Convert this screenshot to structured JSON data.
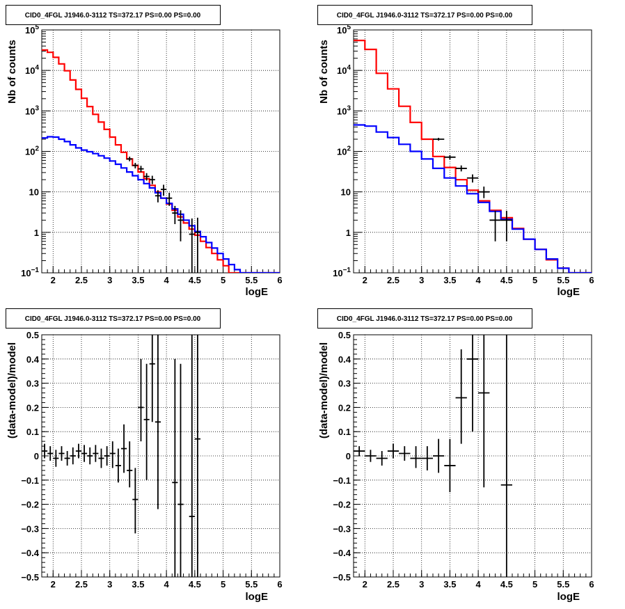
{
  "colors": {
    "total_model": "#ff0000",
    "background_model": "#0000ff",
    "data": "#000000"
  },
  "chart_data": [
    {
      "type": "line",
      "title": "CID0_4FGL J1946.0-3112 TS=372.17 PS=0.00 PS=0.00",
      "xlabel": "logE",
      "ylabel": "Nb of counts",
      "xlim": [
        1.8,
        6.0
      ],
      "ylim": [
        0.1,
        100000
      ],
      "yscale": "log",
      "grid": true,
      "x_ticks": [
        "2",
        "2.5",
        "3",
        "3.5",
        "4",
        "4.5",
        "5",
        "5.5",
        "6"
      ],
      "y_ticks": [
        {
          "base": "10",
          "exp": "−1"
        },
        {
          "base": "1",
          "exp": ""
        },
        {
          "base": "10",
          "exp": ""
        },
        {
          "base": "10",
          "exp": "2"
        },
        {
          "base": "10",
          "exp": "3"
        },
        {
          "base": "10",
          "exp": "4"
        },
        {
          "base": "10",
          "exp": "5"
        }
      ],
      "bin_edges": [
        1.8,
        1.9,
        2.0,
        2.1,
        2.2,
        2.3,
        2.4,
        2.5,
        2.6,
        2.7,
        2.8,
        2.9,
        3.0,
        3.1,
        3.2,
        3.3,
        3.4,
        3.5,
        3.6,
        3.7,
        3.8,
        3.9,
        4.0,
        4.1,
        4.2,
        4.3,
        4.4,
        4.5,
        4.6,
        4.7,
        4.8,
        4.9,
        5.0,
        5.1,
        5.2,
        5.3,
        5.4,
        5.5,
        5.6,
        5.7,
        5.8,
        5.9,
        6.0
      ],
      "series": [
        {
          "role": "total",
          "values": [
            32000,
            28000,
            21000,
            14500,
            9800,
            5800,
            3400,
            2050,
            1280,
            820,
            530,
            350,
            225,
            145,
            95,
            65,
            45,
            31,
            21,
            14.5,
            10,
            7,
            5,
            3.5,
            2.4,
            1.7,
            1.2,
            0.85,
            0.6,
            0.42,
            0.3,
            0.21,
            0.15,
            0.1,
            0.1,
            0.1,
            0.1,
            0.1,
            0.1,
            0.1,
            0.1,
            0.1
          ]
        },
        {
          "role": "background",
          "values": [
            215,
            230,
            225,
            200,
            175,
            145,
            122,
            108,
            98,
            88,
            78,
            68,
            58,
            48,
            39,
            31,
            25,
            20,
            16,
            12.5,
            9.5,
            7,
            5.2,
            3.8,
            2.8,
            2.0,
            1.45,
            1.05,
            0.78,
            0.56,
            0.41,
            0.3,
            0.22,
            0.16,
            0.12,
            0.1,
            0.1,
            0.1,
            0.1,
            0.1,
            0.1,
            0.1
          ]
        }
      ],
      "points": [
        {
          "x": 3.35,
          "y": 65,
          "xerr": 0.05,
          "ylo": 57,
          "yhi": 74
        },
        {
          "x": 3.45,
          "y": 45,
          "xerr": 0.05,
          "ylo": 38,
          "yhi": 52
        },
        {
          "x": 3.55,
          "y": 37,
          "xerr": 0.05,
          "ylo": 31,
          "yhi": 44
        },
        {
          "x": 3.65,
          "y": 24,
          "xerr": 0.05,
          "ylo": 19,
          "yhi": 29
        },
        {
          "x": 3.75,
          "y": 20,
          "xerr": 0.05,
          "ylo": 15.5,
          "yhi": 25
        },
        {
          "x": 3.85,
          "y": 8,
          "xerr": 0.05,
          "ylo": 5.5,
          "yhi": 11
        },
        {
          "x": 3.95,
          "y": 11.5,
          "xerr": 0.05,
          "ylo": 8,
          "yhi": 15
        },
        {
          "x": 4.05,
          "y": 7,
          "xerr": 0.05,
          "ylo": 4.5,
          "yhi": 9.5
        },
        {
          "x": 4.15,
          "y": 3,
          "xerr": 0.05,
          "ylo": 1.6,
          "yhi": 4.5
        },
        {
          "x": 4.25,
          "y": 2,
          "xerr": 0.05,
          "ylo": 0.6,
          "yhi": 3.5
        },
        {
          "x": 4.45,
          "y": 0.9,
          "xerr": 0.05,
          "ylo": 0.1,
          "yhi": 2.2
        },
        {
          "x": 4.55,
          "y": 1,
          "xerr": 0.05,
          "ylo": 0.1,
          "yhi": 2.3
        }
      ]
    },
    {
      "type": "line",
      "title": "CID0_4FGL J1946.0-3112 TS=372.17 PS=0.00 PS=0.00",
      "xlabel": "logE",
      "ylabel": "Nb of counts",
      "xlim": [
        1.8,
        6.0
      ],
      "ylim": [
        0.1,
        100000
      ],
      "yscale": "log",
      "grid": true,
      "x_ticks": [
        "2",
        "2.5",
        "3",
        "3.5",
        "4",
        "4.5",
        "5",
        "5.5",
        "6"
      ],
      "y_ticks": [
        {
          "base": "10",
          "exp": "−1"
        },
        {
          "base": "1",
          "exp": ""
        },
        {
          "base": "10",
          "exp": ""
        },
        {
          "base": "10",
          "exp": "2"
        },
        {
          "base": "10",
          "exp": "3"
        },
        {
          "base": "10",
          "exp": "4"
        },
        {
          "base": "10",
          "exp": "5"
        }
      ],
      "bin_edges": [
        1.8,
        2.0,
        2.2,
        2.4,
        2.6,
        2.8,
        3.0,
        3.2,
        3.4,
        3.6,
        3.8,
        4.0,
        4.2,
        4.4,
        4.6,
        4.8,
        5.0,
        5.2,
        5.4,
        5.6,
        5.8,
        6.0
      ],
      "series": [
        {
          "role": "total",
          "values": [
            55000,
            33000,
            8500,
            3500,
            1300,
            520,
            200,
            75,
            40,
            20,
            11,
            6,
            3.5,
            2.3,
            1.25,
            0.68,
            0.38,
            0.21,
            0.13,
            0.1,
            0.1
          ]
        },
        {
          "role": "background",
          "values": [
            450,
            420,
            300,
            220,
            150,
            100,
            65,
            38,
            22,
            14,
            9,
            5.5,
            3.3,
            2.1,
            1.2,
            0.68,
            0.38,
            0.22,
            0.13,
            0.1,
            0.1
          ]
        }
      ],
      "points": [
        {
          "x": 3.3,
          "y": 200,
          "xerr": 0.1,
          "ylo": 185,
          "yhi": 216
        },
        {
          "x": 3.5,
          "y": 72,
          "xerr": 0.1,
          "ylo": 63,
          "yhi": 81
        },
        {
          "x": 3.7,
          "y": 38,
          "xerr": 0.1,
          "ylo": 32,
          "yhi": 45
        },
        {
          "x": 3.9,
          "y": 22,
          "xerr": 0.1,
          "ylo": 17,
          "yhi": 27
        },
        {
          "x": 4.1,
          "y": 10,
          "xerr": 0.1,
          "ylo": 7,
          "yhi": 13.5
        },
        {
          "x": 4.3,
          "y": 2,
          "xerr": 0.1,
          "ylo": 0.6,
          "yhi": 3.4
        },
        {
          "x": 4.5,
          "y": 2,
          "xerr": 0.1,
          "ylo": 0.6,
          "yhi": 3.4
        }
      ]
    },
    {
      "type": "scatter",
      "title": "CID0_4FGL J1946.0-3112 TS=372.17 PS=0.00 PS=0.00",
      "xlabel": "logE",
      "ylabel": "(data-model)/model",
      "xlim": [
        1.8,
        6.0
      ],
      "ylim": [
        -0.5,
        0.5
      ],
      "grid": true,
      "x_ticks": [
        "2",
        "2.5",
        "3",
        "3.5",
        "4",
        "4.5",
        "5",
        "5.5",
        "6"
      ],
      "y_ticks": [
        "−0.5",
        "−0.4",
        "−0.3",
        "−0.2",
        "−0.1",
        "0",
        "0.1",
        "0.2",
        "0.3",
        "0.4",
        "0.5"
      ],
      "points": [
        {
          "x": 1.85,
          "y": 0.02,
          "xerr": 0.05,
          "ylo": -0.01,
          "yhi": 0.05
        },
        {
          "x": 1.95,
          "y": 0.01,
          "xerr": 0.05,
          "ylo": -0.02,
          "yhi": 0.04
        },
        {
          "x": 2.05,
          "y": -0.01,
          "xerr": 0.05,
          "ylo": -0.045,
          "yhi": 0.025
        },
        {
          "x": 2.15,
          "y": 0.01,
          "xerr": 0.05,
          "ylo": -0.02,
          "yhi": 0.04
        },
        {
          "x": 2.25,
          "y": -0.01,
          "xerr": 0.05,
          "ylo": -0.04,
          "yhi": 0.02
        },
        {
          "x": 2.35,
          "y": 0,
          "xerr": 0.05,
          "ylo": -0.035,
          "yhi": 0.035
        },
        {
          "x": 2.45,
          "y": 0.02,
          "xerr": 0.05,
          "ylo": -0.01,
          "yhi": 0.05
        },
        {
          "x": 2.55,
          "y": 0.01,
          "xerr": 0.05,
          "ylo": -0.025,
          "yhi": 0.045
        },
        {
          "x": 2.65,
          "y": 0,
          "xerr": 0.05,
          "ylo": -0.035,
          "yhi": 0.035
        },
        {
          "x": 2.75,
          "y": 0.01,
          "xerr": 0.05,
          "ylo": -0.025,
          "yhi": 0.045
        },
        {
          "x": 2.85,
          "y": -0.01,
          "xerr": 0.05,
          "ylo": -0.05,
          "yhi": 0.03
        },
        {
          "x": 2.95,
          "y": 0,
          "xerr": 0.05,
          "ylo": -0.04,
          "yhi": 0.04
        },
        {
          "x": 3.05,
          "y": 0.01,
          "xerr": 0.05,
          "ylo": -0.05,
          "yhi": 0.06
        },
        {
          "x": 3.15,
          "y": -0.04,
          "xerr": 0.05,
          "ylo": -0.11,
          "yhi": 0.03
        },
        {
          "x": 3.25,
          "y": 0.03,
          "xerr": 0.05,
          "ylo": -0.07,
          "yhi": 0.13
        },
        {
          "x": 3.35,
          "y": -0.06,
          "xerr": 0.05,
          "ylo": -0.13,
          "yhi": 0.06
        },
        {
          "x": 3.45,
          "y": -0.18,
          "xerr": 0.05,
          "ylo": -0.32,
          "yhi": -0.05
        },
        {
          "x": 3.55,
          "y": 0.2,
          "xerr": 0.05,
          "ylo": 0.06,
          "yhi": 0.4
        },
        {
          "x": 3.65,
          "y": 0.15,
          "xerr": 0.05,
          "ylo": -0.1,
          "yhi": 0.38
        },
        {
          "x": 3.75,
          "y": 0.38,
          "xerr": 0.05,
          "ylo": 0.14,
          "yhi": 0.5
        },
        {
          "x": 3.85,
          "y": 0.14,
          "xerr": 0.05,
          "ylo": -0.22,
          "yhi": 0.5
        },
        {
          "x": 4.15,
          "y": -0.11,
          "xerr": 0.05,
          "ylo": -0.5,
          "yhi": 0.4
        },
        {
          "x": 4.25,
          "y": -0.2,
          "xerr": 0.05,
          "ylo": -0.5,
          "yhi": 0.38
        },
        {
          "x": 4.45,
          "y": -0.25,
          "xerr": 0.05,
          "ylo": -0.5,
          "yhi": 0.5
        },
        {
          "x": 4.55,
          "y": 0.07,
          "xerr": 0.05,
          "ylo": -0.5,
          "yhi": 0.5
        }
      ]
    },
    {
      "type": "scatter",
      "title": "CID0_4FGL J1946.0-3112 TS=372.17 PS=0.00 PS=0.00",
      "xlabel": "logE",
      "ylabel": "(data-model)/model",
      "xlim": [
        1.8,
        6.0
      ],
      "ylim": [
        -0.5,
        0.5
      ],
      "grid": true,
      "x_ticks": [
        "2",
        "2.5",
        "3",
        "3.5",
        "4",
        "4.5",
        "5",
        "5.5",
        "6"
      ],
      "y_ticks": [
        "−0.5",
        "−0.4",
        "−0.3",
        "−0.2",
        "−0.1",
        "0",
        "0.1",
        "0.2",
        "0.3",
        "0.4",
        "0.5"
      ],
      "points": [
        {
          "x": 1.9,
          "y": 0.02,
          "xerr": 0.1,
          "ylo": 0.0,
          "yhi": 0.04
        },
        {
          "x": 2.1,
          "y": 0,
          "xerr": 0.1,
          "ylo": -0.025,
          "yhi": 0.025
        },
        {
          "x": 2.3,
          "y": -0.01,
          "xerr": 0.1,
          "ylo": -0.04,
          "yhi": 0.02
        },
        {
          "x": 2.5,
          "y": 0.02,
          "xerr": 0.1,
          "ylo": -0.01,
          "yhi": 0.05
        },
        {
          "x": 2.7,
          "y": 0.01,
          "xerr": 0.1,
          "ylo": -0.02,
          "yhi": 0.04
        },
        {
          "x": 2.9,
          "y": -0.01,
          "xerr": 0.1,
          "ylo": -0.05,
          "yhi": 0.04
        },
        {
          "x": 3.1,
          "y": -0.01,
          "xerr": 0.1,
          "ylo": -0.06,
          "yhi": 0.04
        },
        {
          "x": 3.3,
          "y": 0,
          "xerr": 0.1,
          "ylo": -0.07,
          "yhi": 0.07
        },
        {
          "x": 3.5,
          "y": -0.04,
          "xerr": 0.1,
          "ylo": -0.15,
          "yhi": 0.07
        },
        {
          "x": 3.7,
          "y": 0.24,
          "xerr": 0.1,
          "ylo": 0.05,
          "yhi": 0.44
        },
        {
          "x": 3.9,
          "y": 0.4,
          "xerr": 0.1,
          "ylo": 0.1,
          "yhi": 0.5
        },
        {
          "x": 4.1,
          "y": 0.26,
          "xerr": 0.1,
          "ylo": -0.13,
          "yhi": 0.5
        },
        {
          "x": 4.5,
          "y": -0.12,
          "xerr": 0.1,
          "ylo": -0.5,
          "yhi": 0.5
        }
      ]
    }
  ]
}
